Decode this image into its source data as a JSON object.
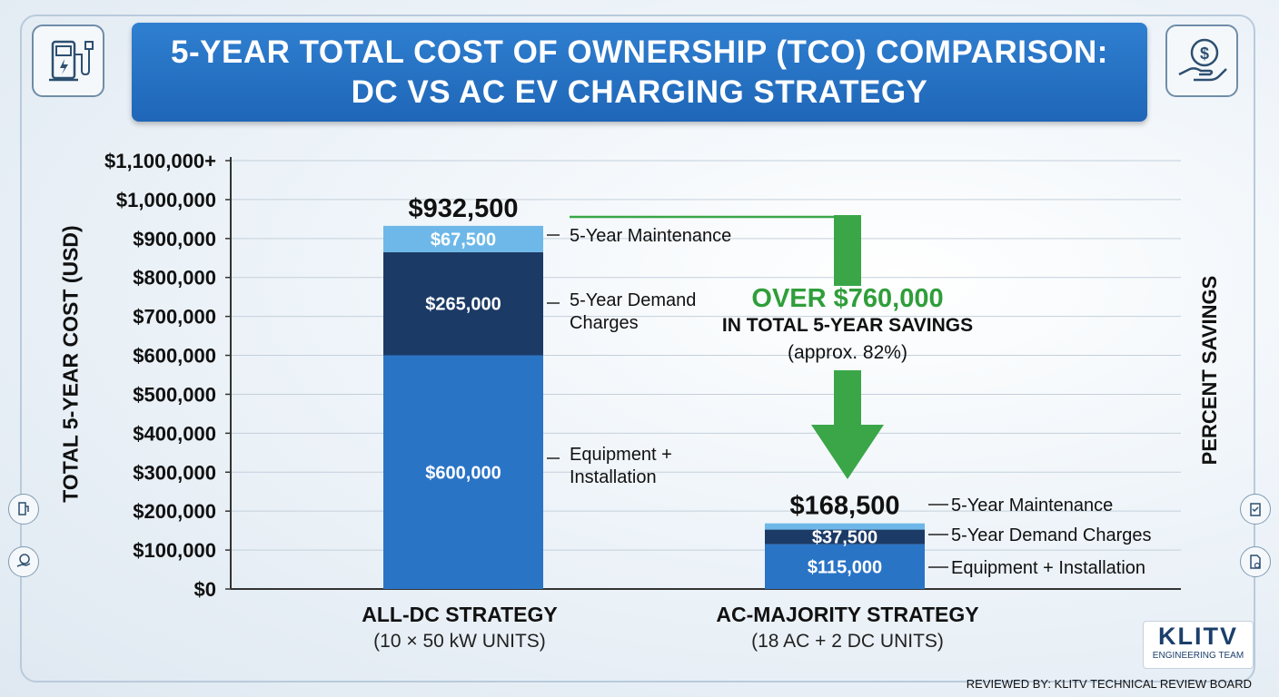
{
  "header": {
    "title_line1": "5-YEAR TOTAL COST OF OWNERSHIP (TCO) COMPARISON:",
    "title_line2": "DC VS AC EV CHARGING STRATEGY"
  },
  "icons": {
    "top_left": "ev-charger-icon",
    "top_right": "hand-dollar-icon",
    "left_side": [
      "ev-charger-small-icon",
      "hand-dollar-small-icon"
    ],
    "right_side": [
      "clipboard-check-icon",
      "document-gear-icon"
    ]
  },
  "colors": {
    "title_bg": "#1f66b8",
    "equipment": "#2a74c6",
    "demand": "#1b3a66",
    "maintenance": "#6db8e8",
    "savings_arrow": "#3aa648",
    "savings_text": "#2f9e3a"
  },
  "chart_data": {
    "type": "bar",
    "stacked": true,
    "ylabel": "TOTAL 5-YEAR COST (USD)",
    "y2label": "PERCENT SAVINGS",
    "ylim": [
      0,
      1100000
    ],
    "yticks": [
      0,
      100000,
      200000,
      300000,
      400000,
      500000,
      600000,
      700000,
      800000,
      900000,
      1000000,
      1100000
    ],
    "ytick_labels": [
      "$0",
      "$100,000",
      "$200,000",
      "$300,000",
      "$400,000",
      "$500,000",
      "$600,000",
      "$700,000",
      "$800,000",
      "$900,000",
      "$1,000,000",
      "$1,100,000+"
    ],
    "grid": true,
    "categories": [
      {
        "name": "ALL-DC STRATEGY",
        "detail": "(10 × 50 kW UNITS)",
        "total": 932500,
        "total_label": "$932,500"
      },
      {
        "name": "AC-MAJORITY STRATEGY",
        "detail": "(18 AC + 2 DC UNITS)",
        "total": 168500,
        "total_label": "$168,500"
      }
    ],
    "series": [
      {
        "key": "equipment",
        "values": [
          600000,
          115000
        ],
        "value_labels": [
          "$600,000",
          "$115,000"
        ],
        "annotations": [
          "Equipment +\nInstallation",
          "Equipment + Installation"
        ]
      },
      {
        "key": "demand",
        "values": [
          265000,
          37500
        ],
        "value_labels": [
          "$265,000",
          "$37,500"
        ],
        "annotations": [
          "5-Year Demand\nCharges",
          "5-Year Demand Charges"
        ]
      },
      {
        "key": "maintenance",
        "values": [
          67500,
          16000
        ],
        "value_labels": [
          "$67,500",
          ""
        ],
        "annotations": [
          "5-Year Maintenance",
          "5-Year Maintenance"
        ]
      }
    ],
    "savings_callout": {
      "headline": "OVER $760,000",
      "line2": "IN TOTAL 5-YEAR SAVINGS",
      "line3": "(approx. 82%)"
    }
  },
  "branding": {
    "logo_text": "KLITV",
    "logo_sub": "ENGINEERING TEAM",
    "footer": "REVIEWED BY: KLITV TECHNICAL REVIEW BOARD"
  }
}
